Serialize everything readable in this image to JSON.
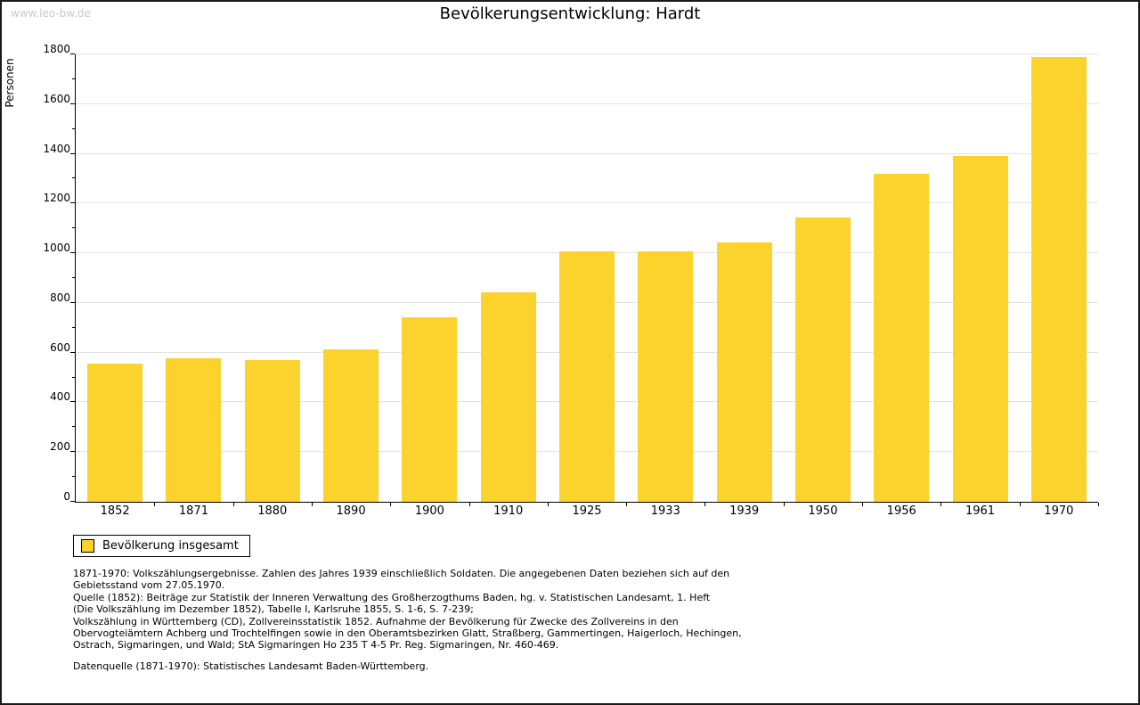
{
  "watermark": "www.leo-bw.de",
  "title": "Bevölkerungsentwicklung: Hardt",
  "chart_data": {
    "type": "bar",
    "title": "Bevölkerungsentwicklung: Hardt",
    "xlabel": "",
    "ylabel": "Personen",
    "categories": [
      "1852",
      "1871",
      "1880",
      "1890",
      "1900",
      "1910",
      "1925",
      "1933",
      "1939",
      "1950",
      "1956",
      "1961",
      "1970"
    ],
    "values": [
      555,
      578,
      571,
      612,
      742,
      843,
      1008,
      1008,
      1043,
      1145,
      1320,
      1390,
      1790
    ],
    "ylim": [
      0,
      1800
    ],
    "ytick_major_step": 200,
    "ytick_minor_step": 100,
    "grid": true,
    "legend_position": "bottom-left",
    "bar_color": "#fcd32d",
    "gridline_color": "#e2e2e2",
    "axis_color": "#000000"
  },
  "legend": {
    "label": "Bevölkerung insgesamt",
    "swatch_color": "#fcd32d"
  },
  "footnotes": {
    "lines": [
      "1871-1970: Volkszählungsergebnisse. Zahlen des Jahres 1939 einschließlich Soldaten. Die angegebenen Daten beziehen sich auf den",
      "Gebietsstand vom 27.05.1970.",
      "Quelle (1852): Beiträge zur Statistik der Inneren Verwaltung des Großherzogthums Baden, hg. v. Statistischen Landesamt, 1. Heft",
      "(Die Volkszählung im Dezember 1852), Tabelle I, Karlsruhe 1855, S. 1-6, S. 7-239;",
      "Volkszählung in Württemberg (CD), Zollvereinsstatistik 1852. Aufnahme der Bevölkerung für Zwecke des Zollvereins in den",
      "Obervogteiämtern Achberg und Trochtelfingen sowie in den Oberamtsbezirken Glatt, Straßberg, Gammertingen, Haigerloch, Hechingen,",
      "Ostrach, Sigmaringen, und Wald; StA Sigmaringen Ho 235 T 4-5 Pr. Reg. Sigmaringen, Nr. 460-469."
    ],
    "datasource": "Datenquelle (1871-1970): Statistisches Landesamt Baden-Württemberg."
  }
}
